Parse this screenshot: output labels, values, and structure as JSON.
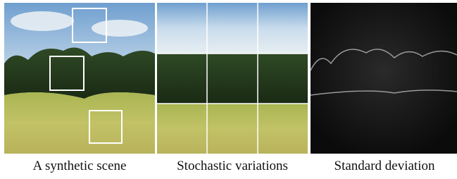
{
  "figure": {
    "captions": [
      "A synthetic scene",
      "Stochastic variations",
      "Standard deviation"
    ]
  }
}
